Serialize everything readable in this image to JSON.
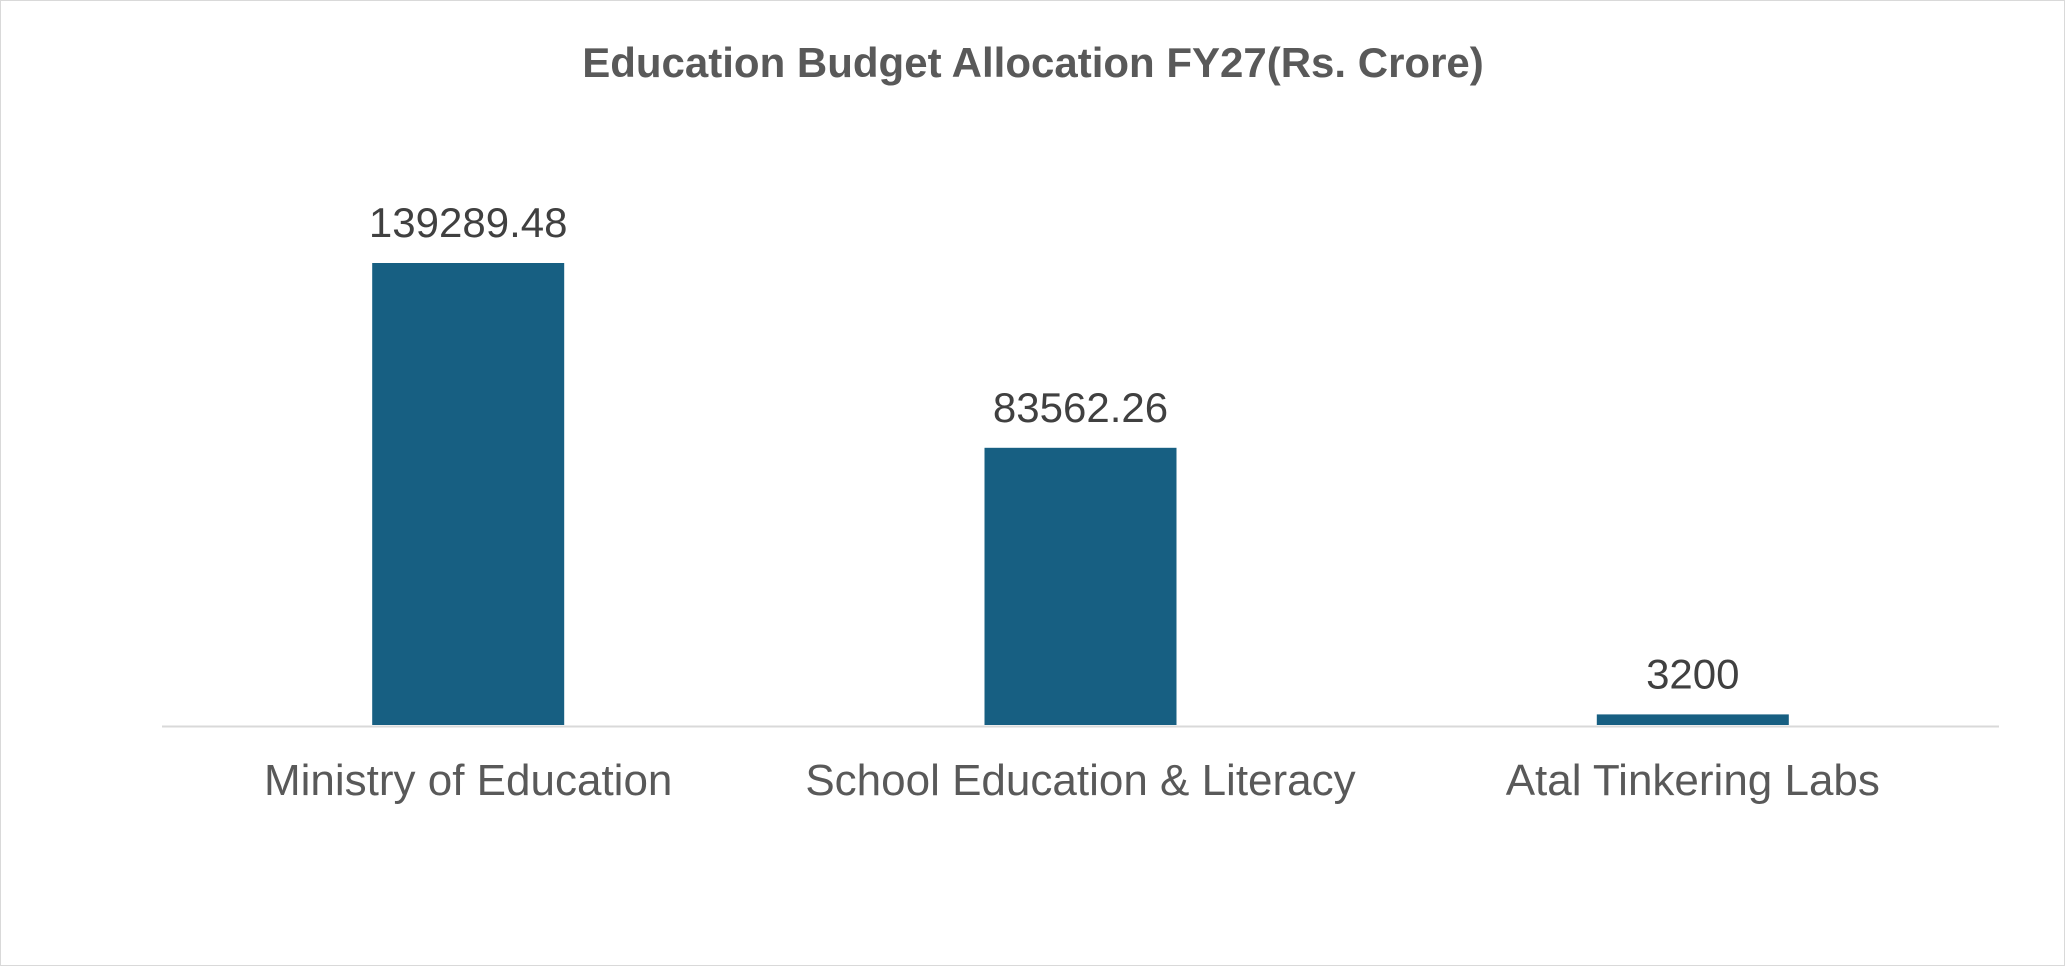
{
  "chart_data": {
    "type": "bar",
    "title": "Education Budget Allocation FY27(Rs. Crore)",
    "categories": [
      "Ministry of Education",
      "School Education & Literacy",
      "Atal Tinkering Labs"
    ],
    "values": [
      139289.48,
      83562.26,
      3200
    ],
    "value_labels": [
      "139289.48",
      "83562.26",
      "3200"
    ],
    "xlabel": "",
    "ylabel": "",
    "ylim": [
      0,
      139289.48
    ],
    "grid": false,
    "legend": "none",
    "bar_color": "#175F82",
    "axis_color": "#D9D9D9"
  }
}
